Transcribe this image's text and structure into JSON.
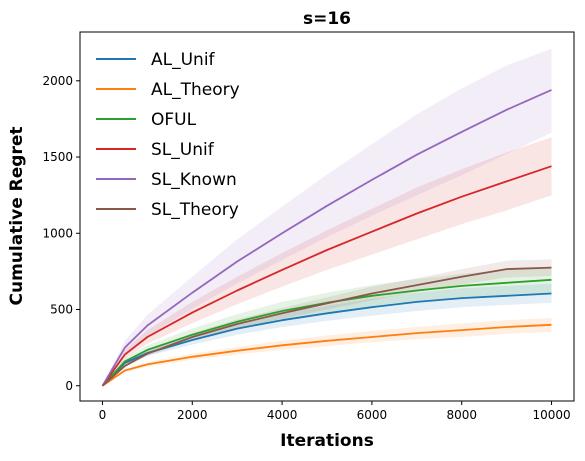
{
  "chart_data": {
    "type": "line",
    "title": "s=16",
    "xlabel": "Iterations",
    "ylabel": "Cumulative Regret",
    "xlim": [
      -500,
      10500
    ],
    "ylim": [
      -100,
      2320
    ],
    "xticks": [
      0,
      2000,
      4000,
      6000,
      8000,
      10000
    ],
    "yticks": [
      0,
      500,
      1000,
      1500,
      2000
    ],
    "grid": false,
    "legend_position": "top-left",
    "x": [
      0,
      500,
      1000,
      2000,
      3000,
      4000,
      5000,
      6000,
      7000,
      8000,
      9000,
      10000
    ],
    "series": [
      {
        "name": "AL_Unif",
        "color": "#1f77b4",
        "values": [
          0,
          150,
          215,
          300,
          375,
          430,
          475,
          515,
          550,
          575,
          590,
          605
        ],
        "lower": [
          0,
          135,
          195,
          270,
          335,
          385,
          425,
          460,
          490,
          515,
          530,
          545
        ],
        "upper": [
          0,
          165,
          235,
          330,
          415,
          475,
          525,
          570,
          610,
          640,
          655,
          670
        ]
      },
      {
        "name": "AL_Theory",
        "color": "#ff7f0e",
        "values": [
          0,
          100,
          140,
          190,
          230,
          265,
          295,
          320,
          345,
          365,
          385,
          400
        ],
        "lower": [
          0,
          90,
          125,
          170,
          205,
          235,
          260,
          285,
          305,
          320,
          340,
          355
        ],
        "upper": [
          0,
          110,
          155,
          210,
          255,
          295,
          330,
          360,
          385,
          410,
          430,
          445
        ]
      },
      {
        "name": "OFUL",
        "color": "#2ca02c",
        "values": [
          0,
          160,
          235,
          335,
          420,
          490,
          545,
          590,
          625,
          655,
          675,
          695
        ],
        "lower": [
          0,
          140,
          205,
          295,
          370,
          430,
          480,
          520,
          550,
          575,
          595,
          610
        ],
        "upper": [
          0,
          180,
          265,
          375,
          470,
          550,
          610,
          660,
          700,
          735,
          760,
          780
        ]
      },
      {
        "name": "SL_Unif",
        "color": "#d62728",
        "values": [
          0,
          205,
          320,
          480,
          625,
          760,
          890,
          1010,
          1130,
          1240,
          1340,
          1440
        ],
        "lower": [
          0,
          175,
          275,
          410,
          535,
          650,
          760,
          860,
          960,
          1060,
          1150,
          1250
        ],
        "upper": [
          0,
          235,
          365,
          550,
          715,
          870,
          1020,
          1160,
          1300,
          1420,
          1530,
          1630
        ]
      },
      {
        "name": "SL_Known",
        "color": "#9467bd",
        "values": [
          0,
          250,
          395,
          610,
          815,
          1000,
          1180,
          1350,
          1515,
          1665,
          1810,
          1940
        ],
        "lower": [
          0,
          205,
          325,
          505,
          670,
          825,
          975,
          1115,
          1250,
          1380,
          1520,
          1660
        ],
        "upper": [
          0,
          295,
          465,
          715,
          960,
          1175,
          1385,
          1585,
          1780,
          1950,
          2100,
          2210
        ]
      },
      {
        "name": "SL_Theory",
        "color": "#8c564b",
        "values": [
          0,
          130,
          210,
          320,
          405,
          475,
          540,
          605,
          660,
          715,
          765,
          775
        ],
        "lower": [
          0,
          120,
          195,
          295,
          375,
          440,
          500,
          560,
          615,
          665,
          710,
          720
        ],
        "upper": [
          0,
          140,
          225,
          345,
          435,
          510,
          580,
          650,
          705,
          765,
          820,
          830
        ]
      }
    ]
  }
}
